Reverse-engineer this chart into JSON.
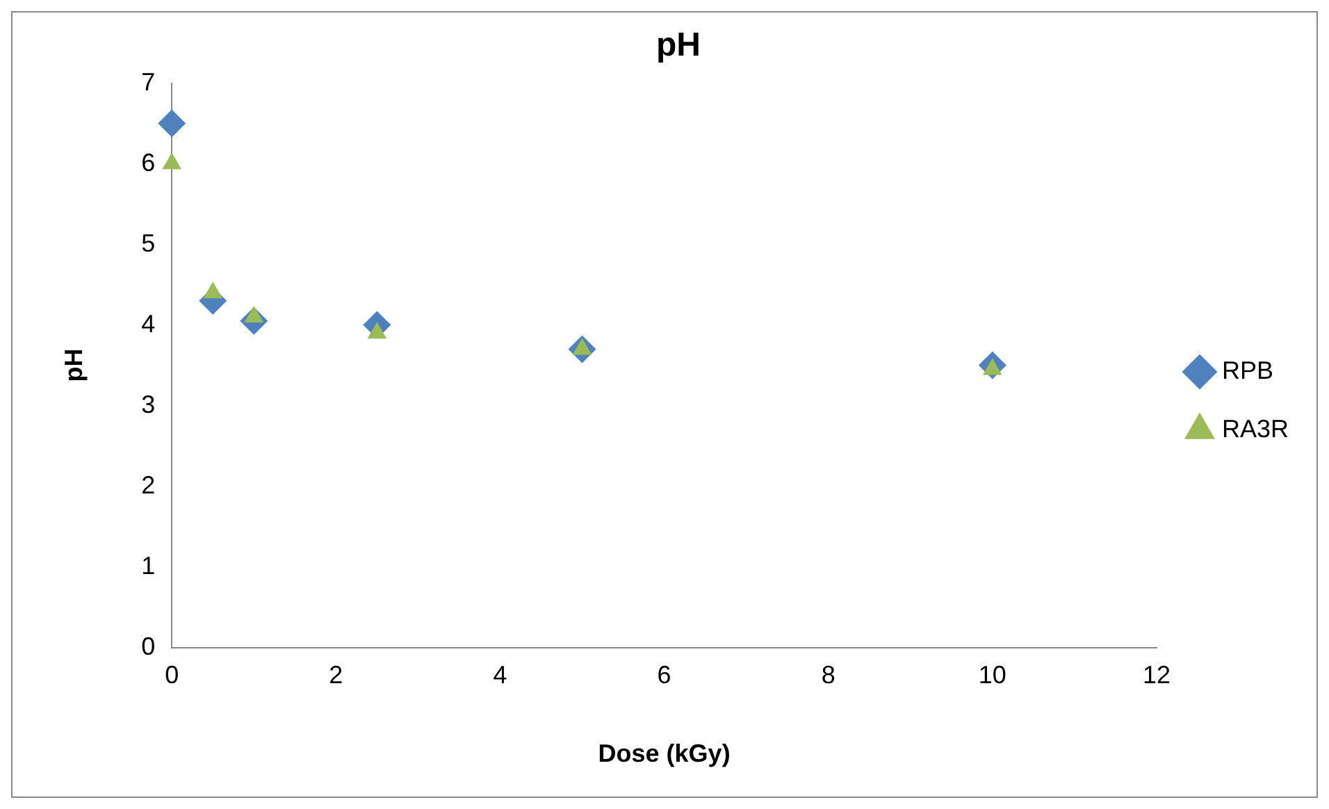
{
  "chart_data": {
    "type": "scatter",
    "title": "pH",
    "xlabel": "Dose (kGy)",
    "ylabel": "pH",
    "x": [
      0,
      0.5,
      1,
      2.5,
      5,
      10
    ],
    "series": [
      {
        "name": "RPB",
        "color": "#4f81bd",
        "marker": "diamond",
        "values": [
          6.5,
          4.3,
          4.05,
          4.0,
          3.7,
          3.5
        ]
      },
      {
        "name": "RA3R",
        "color": "#9bbb59",
        "marker": "triangle",
        "values": [
          6.0,
          4.4,
          4.1,
          3.9,
          3.7,
          3.45
        ]
      }
    ],
    "xlim": [
      0,
      12
    ],
    "xticks": [
      0,
      2,
      4,
      6,
      8,
      10,
      12
    ],
    "ylim": [
      0,
      7
    ],
    "yticks": [
      0,
      1,
      2,
      3,
      4,
      5,
      6,
      7
    ],
    "grid": false,
    "legend": "right"
  }
}
